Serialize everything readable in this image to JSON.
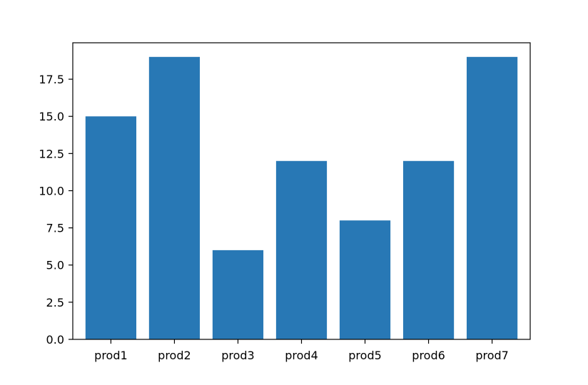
{
  "chart_data": {
    "type": "bar",
    "categories": [
      "prod1",
      "prod2",
      "prod3",
      "prod4",
      "prod5",
      "prod6",
      "prod7"
    ],
    "values": [
      15,
      19,
      6,
      12,
      8,
      12,
      19
    ],
    "title": "",
    "xlabel": "",
    "ylabel": "",
    "ylim": [
      0,
      19.95
    ],
    "yticks": [
      0,
      2.5,
      5,
      7.5,
      10,
      12.5,
      15,
      17.5
    ],
    "ytick_labels": [
      "0.0",
      "2.5",
      "5.0",
      "7.5",
      "10.0",
      "12.5",
      "15.0",
      "17.5"
    ],
    "grid": false,
    "bar_color": "#2878b5"
  }
}
